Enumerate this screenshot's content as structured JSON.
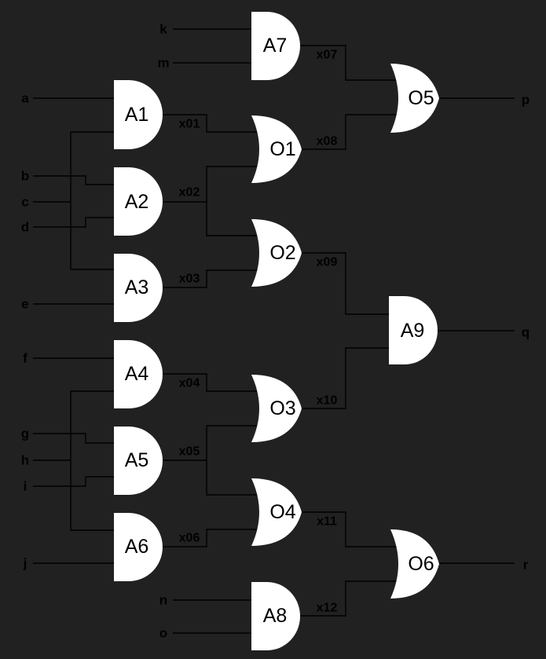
{
  "colors": {
    "background": "#212121",
    "gate_fill": "#ffffff",
    "wire": "#000000",
    "text": "#000000"
  },
  "inputs": [
    "a",
    "b",
    "c",
    "d",
    "e",
    "f",
    "g",
    "h",
    "i",
    "j",
    "k",
    "m",
    "n",
    "o"
  ],
  "outputs": [
    "p",
    "q",
    "r"
  ],
  "gates": {
    "A1": {
      "type": "and",
      "label": "A1"
    },
    "A2": {
      "type": "and",
      "label": "A2"
    },
    "A3": {
      "type": "and",
      "label": "A3"
    },
    "A4": {
      "type": "and",
      "label": "A4"
    },
    "A5": {
      "type": "and",
      "label": "A5"
    },
    "A6": {
      "type": "and",
      "label": "A6"
    },
    "A7": {
      "type": "and",
      "label": "A7"
    },
    "A8": {
      "type": "and",
      "label": "A8"
    },
    "A9": {
      "type": "and",
      "label": "A9"
    },
    "O1": {
      "type": "or",
      "label": "O1"
    },
    "O2": {
      "type": "or",
      "label": "O2"
    },
    "O3": {
      "type": "or",
      "label": "O3"
    },
    "O4": {
      "type": "or",
      "label": "O4"
    },
    "O5": {
      "type": "or",
      "label": "O5"
    },
    "O6": {
      "type": "or",
      "label": "O6"
    }
  },
  "wires": [
    "x01",
    "x02",
    "x03",
    "x04",
    "x05",
    "x06",
    "x07",
    "x08",
    "x09",
    "x10",
    "x11",
    "x12"
  ]
}
